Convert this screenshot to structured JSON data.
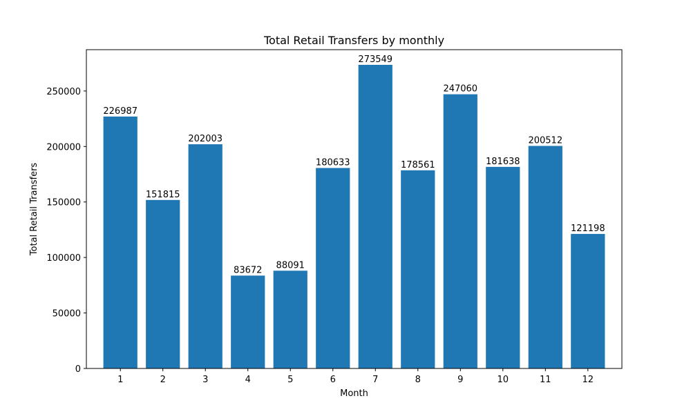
{
  "chart_data": {
    "type": "bar",
    "title": "Total Retail Transfers by monthly",
    "xlabel": "Month",
    "ylabel": "Total Retail Transfers",
    "categories": [
      "1",
      "2",
      "3",
      "4",
      "5",
      "6",
      "7",
      "8",
      "9",
      "10",
      "11",
      "12"
    ],
    "values": [
      226987,
      151815,
      202003,
      83672,
      88091,
      180633,
      273549,
      178561,
      247060,
      181638,
      200512,
      121198
    ],
    "data_labels": [
      "226987",
      "151815",
      "202003",
      "83672",
      "88091",
      "180633",
      "273549",
      "178561",
      "247060",
      "181638",
      "200512",
      "121198"
    ],
    "yticks": [
      0,
      50000,
      100000,
      150000,
      200000,
      250000
    ],
    "ytick_labels": [
      "0",
      "50000",
      "100000",
      "150000",
      "200000",
      "250000"
    ],
    "ylim": [
      0,
      287226
    ],
    "grid": false,
    "legend": "none",
    "bar_color": "#1f77b4"
  }
}
